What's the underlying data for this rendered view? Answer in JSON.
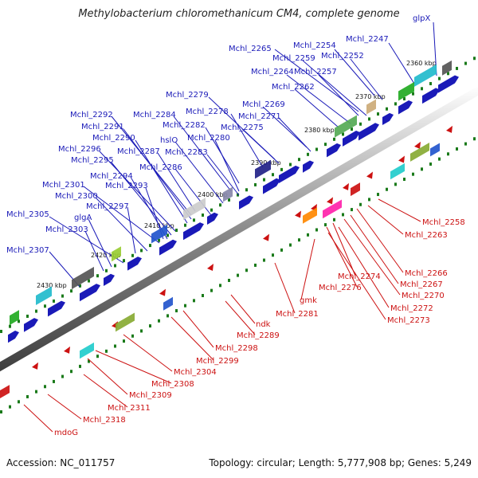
{
  "header": {
    "title": "Methylobacterium chloromethanicum CM4, complete genome"
  },
  "footer": {
    "accession": "Accession: NC_011757",
    "summary": "Topology: circular; Length: 5,777,908 bp; Genes: 5,249"
  },
  "scale_ticks": [
    "2360 kbp",
    "2370 kbp",
    "2380 kbp",
    "2390 kbp",
    "2400 kbp",
    "2410 kbp",
    "2420 kbp",
    "2430 kbp"
  ],
  "colors": {
    "forward": "#1a1ab8",
    "reverse": "#cc1111",
    "backbone": "#8a8a8a"
  },
  "top_labels": [
    "glpX",
    "Mchl_2247",
    "Mchl_2254",
    "Mchl_2252",
    "Mchl_2265",
    "Mchl_2259",
    "Mchl_2264",
    "Mchl_2257",
    "Mchl_2262",
    "Mchl_2279",
    "Mchl_2278",
    "Mchl_2269",
    "Mchl_2271",
    "Mchl_2275",
    "Mchl_2284",
    "Mchl_2282",
    "Mchl_2292",
    "Mchl_2291",
    "Mchl_2290",
    "hslO",
    "Mchl_2280",
    "Mchl_2296",
    "Mchl_2287",
    "Mchl_2283",
    "Mchl_2295",
    "Mchl_2286",
    "Mchl_2294",
    "Mchl_2301",
    "Mchl_2293",
    "Mchl_2300",
    "Mchl_2297",
    "Mchl_2305",
    "glgA",
    "Mchl_2303",
    "Mchl_2307"
  ],
  "bottom_labels": [
    "Mchl_2258",
    "Mchl_2263",
    "Mchl_2266",
    "Mchl_2267",
    "Mchl_2270",
    "Mchl_2274",
    "Mchl_2272",
    "Mchl_2276",
    "Mchl_2273",
    "gmk",
    "Mchl_2281",
    "ndk",
    "Mchl_2289",
    "Mchl_2298",
    "Mchl_2299",
    "Mchl_2304",
    "Mchl_2308",
    "Mchl_2309",
    "Mchl_2311",
    "Mchl_2318",
    "mdoG"
  ]
}
